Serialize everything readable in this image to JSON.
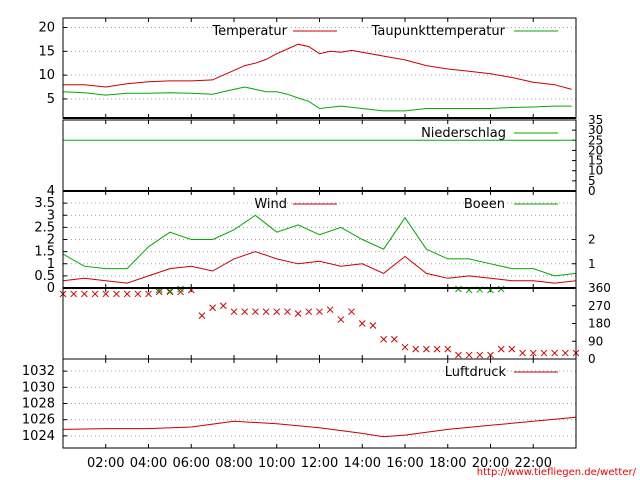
{
  "chart_data": [
    {
      "type": "line",
      "panel": "temperature",
      "yticks": [
        5,
        10,
        15,
        20
      ],
      "ylim": [
        1,
        22
      ],
      "legend": [
        "Temperatur",
        "Taupunkttemperatur"
      ],
      "colors": {
        "Temperatur": "#cc0000",
        "Taupunkttemperatur": "#00aa00"
      },
      "series": [
        {
          "name": "Temperatur",
          "x": [
            0,
            1,
            2,
            3,
            4,
            5,
            6,
            7,
            7.5,
            8,
            8.5,
            9,
            9.5,
            10,
            10.5,
            11,
            11.5,
            12,
            12.5,
            13,
            13.5,
            14,
            15,
            16,
            17,
            18,
            19,
            20,
            21,
            22,
            23,
            23.8
          ],
          "values": [
            8,
            8,
            7.5,
            8.2,
            8.6,
            8.8,
            8.8,
            9,
            10,
            11,
            12,
            12.5,
            13.3,
            14.5,
            15.5,
            16.5,
            16,
            14.5,
            15,
            14.8,
            15.2,
            14.8,
            14,
            13.2,
            12,
            11.3,
            10.8,
            10.3,
            9.5,
            8.5,
            8,
            7
          ]
        },
        {
          "name": "Taupunkttemperatur",
          "x": [
            0,
            1,
            2,
            3,
            4,
            5,
            6,
            7,
            7.5,
            8,
            8.5,
            9,
            9.5,
            10,
            10.5,
            11,
            11.5,
            12,
            13,
            14,
            15,
            16,
            17,
            18,
            19,
            20,
            21,
            22,
            23,
            23.8
          ],
          "values": [
            6.5,
            6.3,
            5.8,
            6.2,
            6.2,
            6.3,
            6.2,
            6,
            6.5,
            7,
            7.5,
            7,
            6.5,
            6.5,
            6,
            5.2,
            4.5,
            3,
            3.5,
            3,
            2.5,
            2.5,
            3,
            3,
            3,
            3,
            3.2,
            3.3,
            3.5,
            3.5
          ]
        }
      ]
    },
    {
      "type": "line",
      "panel": "precipitation",
      "yticks": [
        0,
        5,
        10,
        15,
        20,
        25,
        30,
        35
      ],
      "ylim": [
        0,
        35
      ],
      "legend": [
        "Niederschlag"
      ],
      "colors": {
        "Niederschlag": "#00aa00"
      },
      "series": [
        {
          "name": "Niederschlag",
          "x": [
            0,
            24
          ],
          "values": [
            25,
            25
          ]
        }
      ]
    },
    {
      "type": "line",
      "panel": "wind",
      "yticks": [
        0,
        0.5,
        1,
        1.5,
        2,
        2.5,
        3,
        3.5,
        4
      ],
      "yticks_right": [
        1,
        2
      ],
      "ylim": [
        0,
        4
      ],
      "legend": [
        "Wind",
        "Boeen"
      ],
      "colors": {
        "Wind": "#cc0000",
        "Boeen": "#00aa00"
      },
      "series": [
        {
          "name": "Wind",
          "x": [
            0,
            1,
            2,
            3,
            4,
            5,
            6,
            7,
            8,
            9,
            10,
            11,
            12,
            13,
            14,
            15,
            16,
            17,
            18,
            19,
            20,
            21,
            22,
            23,
            24
          ],
          "values": [
            0.3,
            0.4,
            0.3,
            0.2,
            0.5,
            0.8,
            0.9,
            0.7,
            1.2,
            1.5,
            1.2,
            1.0,
            1.1,
            0.9,
            1.0,
            0.6,
            1.3,
            0.6,
            0.4,
            0.5,
            0.4,
            0.3,
            0.3,
            0.2,
            0.3
          ]
        },
        {
          "name": "Boeen",
          "x": [
            0,
            1,
            2,
            3,
            4,
            5,
            6,
            7,
            8,
            9,
            10,
            11,
            12,
            13,
            14,
            15,
            16,
            17,
            18,
            19,
            20,
            21,
            22,
            23,
            24
          ],
          "values": [
            1.4,
            0.9,
            0.8,
            0.8,
            1.7,
            2.3,
            2.0,
            2.0,
            2.4,
            3.0,
            2.3,
            2.6,
            2.2,
            2.5,
            2.0,
            1.6,
            2.9,
            1.6,
            1.2,
            1.2,
            1.0,
            0.8,
            0.8,
            0.5,
            0.6
          ]
        }
      ]
    },
    {
      "type": "scatter",
      "panel": "wind-direction",
      "yticks_right": [
        0,
        90,
        180,
        270,
        360
      ],
      "ylim": [
        0,
        360
      ],
      "colors": {
        "Richtung": "#cc0000",
        "Boeen-Richtung": "#00aa00"
      },
      "series": [
        {
          "name": "Richtung",
          "x": [
            0,
            0.5,
            1,
            1.5,
            2,
            2.5,
            3,
            3.5,
            4,
            4.5,
            5,
            5.5,
            6,
            6.5,
            7,
            7.5,
            8,
            8.5,
            9,
            9.5,
            10,
            10.5,
            11,
            11.5,
            12,
            12.5,
            13,
            13.5,
            14,
            14.5,
            15,
            15.5,
            16,
            16.5,
            17,
            17.5,
            18,
            18.5,
            19,
            19.5,
            20,
            20.5,
            21,
            21.5,
            22,
            22.5,
            23,
            23.5,
            24
          ],
          "values": [
            330,
            330,
            330,
            330,
            330,
            330,
            330,
            330,
            330,
            340,
            340,
            340,
            350,
            220,
            260,
            270,
            240,
            240,
            240,
            240,
            240,
            240,
            230,
            240,
            240,
            250,
            200,
            240,
            180,
            170,
            100,
            100,
            60,
            50,
            50,
            50,
            50,
            20,
            20,
            20,
            20,
            50,
            50,
            30,
            30,
            30,
            30,
            30,
            30
          ]
        },
        {
          "name": "Boeen-Richtung",
          "x": [
            4.5,
            5,
            5.5,
            18.5,
            19,
            19.5,
            20,
            20.5
          ],
          "values": [
            350,
            345,
            355,
            355,
            350,
            352,
            350,
            355
          ]
        }
      ]
    },
    {
      "type": "line",
      "panel": "pressure",
      "yticks": [
        1024,
        1026,
        1028,
        1030,
        1032
      ],
      "ylim": [
        1022.5,
        1033.5
      ],
      "legend": [
        "Luftdruck"
      ],
      "colors": {
        "Luftdruck": "#cc0000"
      },
      "series": [
        {
          "name": "Luftdruck",
          "x": [
            0,
            2,
            4,
            6,
            8,
            10,
            12,
            14,
            15,
            16,
            18,
            20,
            22,
            24
          ],
          "values": [
            1024.8,
            1024.9,
            1024.9,
            1025.1,
            1025.8,
            1025.5,
            1025,
            1024.3,
            1023.9,
            1024.1,
            1024.8,
            1025.3,
            1025.8,
            1026.3
          ]
        }
      ]
    }
  ],
  "xaxis": {
    "ticks": [
      "02:00",
      "04:00",
      "06:00",
      "08:00",
      "10:00",
      "12:00",
      "14:00",
      "16:00",
      "18:00",
      "20:00",
      "22:00"
    ]
  },
  "footer_url": "http://www.tiefliegen.de/wetter/"
}
